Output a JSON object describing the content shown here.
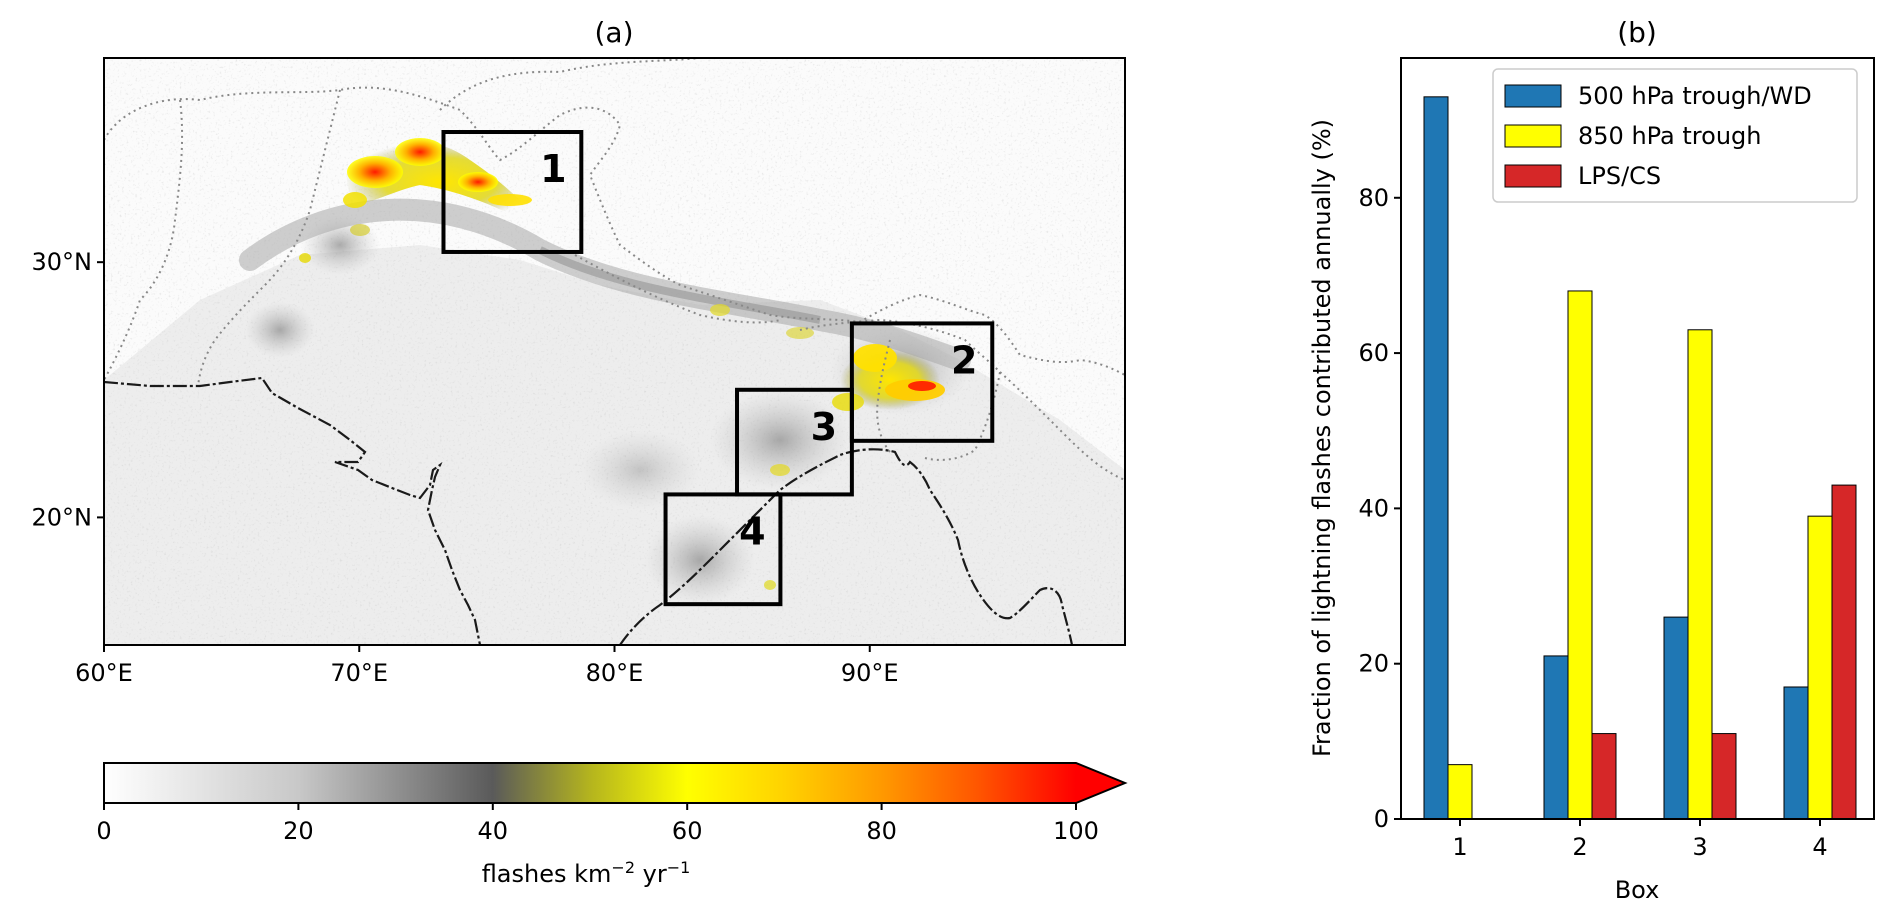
{
  "chart_data": [
    {
      "type": "heatmap",
      "panel_title": "(a)",
      "x_ticks": [
        "60°E",
        "70°E",
        "80°E",
        "90°E"
      ],
      "y_ticks": [
        "30°N",
        "20°N"
      ],
      "x_tick_values": [
        60,
        70,
        80,
        90
      ],
      "y_tick_values": [
        30,
        20
      ],
      "xlim": [
        60,
        100
      ],
      "ylim": [
        15,
        38
      ],
      "boxes": [
        {
          "label": "1",
          "lon": [
            73.3,
            78.7
          ],
          "lat": [
            30.4,
            35.1
          ]
        },
        {
          "label": "2",
          "lon": [
            89.3,
            94.8
          ],
          "lat": [
            23.0,
            27.6
          ]
        },
        {
          "label": "3",
          "lon": [
            84.8,
            89.3
          ],
          "lat": [
            20.9,
            25.0
          ]
        },
        {
          "label": "4",
          "lon": [
            82.0,
            86.5
          ],
          "lat": [
            16.6,
            20.9
          ]
        }
      ],
      "colorbar": {
        "label_main": "flashes km",
        "label_exp1": "−2",
        "label_mid": " yr",
        "label_exp2": "−1",
        "ticks": [
          "0",
          "20",
          "40",
          "60",
          "80",
          "100"
        ],
        "tick_values": [
          0,
          20,
          40,
          60,
          80,
          100
        ],
        "range": [
          0,
          100
        ],
        "extend": "max"
      }
    },
    {
      "type": "bar",
      "panel_title": "(b)",
      "categories": [
        "1",
        "2",
        "3",
        "4"
      ],
      "xlabel": "Box",
      "ylabel": "Fraction of lightning flashes contributed annually (%)",
      "ylim": [
        0,
        98
      ],
      "y_ticks": [
        0,
        20,
        40,
        60,
        80
      ],
      "legend_position": "top-right",
      "series": [
        {
          "name": "500 hPa trough/WD",
          "color": "#1f77b4",
          "values": [
            93,
            21,
            26,
            17
          ]
        },
        {
          "name": "850 hPa trough",
          "color": "#ffff00",
          "values": [
            7,
            68,
            63,
            39
          ]
        },
        {
          "name": "LPS/CS",
          "color": "#d62728",
          "values": [
            0,
            11,
            11,
            43
          ]
        }
      ]
    }
  ]
}
